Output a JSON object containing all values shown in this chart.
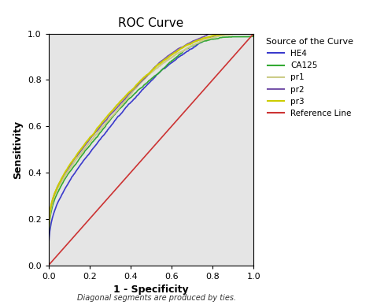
{
  "title": "ROC Curve",
  "xlabel": "1 - Specificity",
  "ylabel": "Sensitivity",
  "footnote": "Diagonal segments are produced by ties.",
  "xlim": [
    0.0,
    1.0
  ],
  "ylim": [
    0.0,
    1.0
  ],
  "xticks": [
    0.0,
    0.2,
    0.4,
    0.6,
    0.8,
    1.0
  ],
  "yticks": [
    0.0,
    0.2,
    0.4,
    0.6,
    0.8,
    1.0
  ],
  "background_color": "#e5e5e5",
  "legend_title": "Source of the Curve",
  "curves": [
    {
      "label": "HE4",
      "color": "#3a3acc",
      "lw": 1.2
    },
    {
      "label": "CA125",
      "color": "#33aa33",
      "lw": 1.2
    },
    {
      "label": "pr1",
      "color": "#cccc88",
      "lw": 1.5
    },
    {
      "label": "pr2",
      "color": "#7755aa",
      "lw": 1.2
    },
    {
      "label": "pr3",
      "color": "#cccc00",
      "lw": 1.5
    },
    {
      "label": "Reference Line",
      "color": "#cc3333",
      "lw": 1.2
    }
  ]
}
